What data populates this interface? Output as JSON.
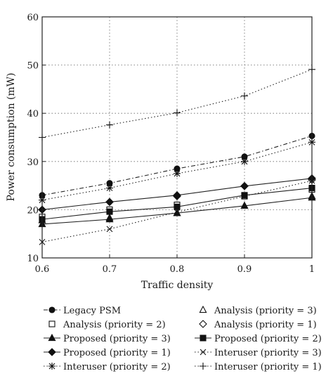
{
  "chart_data": {
    "type": "line",
    "title": "",
    "xlabel": "Traffic density",
    "ylabel": "Power consumption (mW)",
    "xlim": [
      0.6,
      1.0
    ],
    "ylim": [
      10,
      60
    ],
    "x": [
      0.6,
      0.7,
      0.8,
      0.9,
      1.0
    ],
    "x_ticks": [
      "0.6",
      "0.7",
      "0.8",
      "0.9",
      "1"
    ],
    "y_ticks": [
      "10",
      "20",
      "30",
      "40",
      "50",
      "60"
    ],
    "grid": true,
    "legend_placement": "bottom",
    "series": [
      {
        "name": "Legacy PSM",
        "marker": "filled-circle",
        "style": "dashdot",
        "values": [
          23.0,
          25.5,
          28.5,
          31.0,
          35.3
        ]
      },
      {
        "name": "Analysis (priority = 3)",
        "marker": "open-triangle",
        "style": "none",
        "values": [
          17.8,
          18.3,
          19.3,
          20.8,
          22.8
        ]
      },
      {
        "name": "Analysis (priority = 2)",
        "marker": "open-square",
        "style": "none",
        "values": [
          18.5,
          20.0,
          21.0,
          22.8,
          24.2
        ]
      },
      {
        "name": "Analysis (priority = 1)",
        "marker": "open-diamond",
        "style": "none",
        "values": [
          20.0,
          21.6,
          22.8,
          24.9,
          26.2
        ]
      },
      {
        "name": "Proposed (priority = 3)",
        "marker": "filled-triangle",
        "style": "solid",
        "values": [
          17.0,
          18.0,
          19.3,
          20.8,
          22.5
        ]
      },
      {
        "name": "Proposed (priority = 2)",
        "marker": "filled-square",
        "style": "solid",
        "values": [
          18.0,
          19.6,
          20.6,
          23.0,
          24.5
        ]
      },
      {
        "name": "Proposed (priority = 1)",
        "marker": "filled-diamond",
        "style": "solid",
        "values": [
          20.0,
          21.6,
          23.0,
          24.9,
          26.5
        ]
      },
      {
        "name": "Interuser (priority = 3)",
        "marker": "x",
        "style": "dotted",
        "values": [
          13.3,
          16.0,
          19.5,
          22.8,
          26.0
        ]
      },
      {
        "name": "Interuser (priority = 2)",
        "marker": "star",
        "style": "dotted",
        "values": [
          22.0,
          24.5,
          27.5,
          30.0,
          34.0
        ]
      },
      {
        "name": "Interuser (priority = 1)",
        "marker": "plus",
        "style": "dotted",
        "values": [
          35.0,
          37.6,
          40.1,
          43.6,
          49.1
        ]
      }
    ],
    "legend": [
      "Legacy PSM",
      "Analysis (priority = 3)",
      "Analysis (priority = 2)",
      "Analysis (priority = 1)",
      "Proposed (priority = 3)",
      "Proposed (priority = 2)",
      "Proposed (priority = 1)",
      "Interuser (priority = 3)",
      "Interuser (priority = 2)",
      "Interuser (priority = 1)"
    ]
  }
}
